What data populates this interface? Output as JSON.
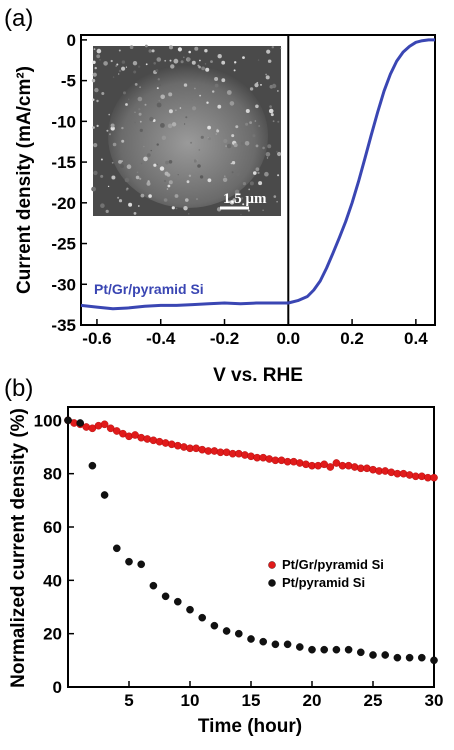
{
  "colors": {
    "blue_series": "#3a46b3",
    "red_series": "#e01b1b",
    "black_series": "#111111",
    "axis": "#000000"
  },
  "chart_data": [
    {
      "panel": "(a)",
      "type": "line",
      "xlabel": "V vs. RHE",
      "ylabel": "Current density (mA/cm²)",
      "xlim": [
        -0.65,
        0.46
      ],
      "ylim": [
        -35,
        0.6
      ],
      "xticks": [
        -0.6,
        -0.4,
        -0.2,
        0.0,
        0.2,
        0.4
      ],
      "xtick_labels": [
        "-0.6",
        "-0.4",
        "-0.2",
        "0.0",
        "0.2",
        "0.4"
      ],
      "yticks": [
        0,
        -5,
        -10,
        -15,
        -20,
        -25,
        -30,
        -35
      ],
      "ytick_labels": [
        "0",
        "-5",
        "-10",
        "-15",
        "-20",
        "-25",
        "-30",
        "-35"
      ],
      "vertical_line_at": 0.0,
      "series": [
        {
          "name": "Pt/Gr/pyramid Si",
          "color": "#3a46b3",
          "x": [
            -0.65,
            -0.6,
            -0.55,
            -0.5,
            -0.45,
            -0.4,
            -0.35,
            -0.3,
            -0.25,
            -0.2,
            -0.15,
            -0.1,
            -0.05,
            0.0,
            0.03,
            0.06,
            0.08,
            0.1,
            0.12,
            0.14,
            0.16,
            0.18,
            0.2,
            0.22,
            0.24,
            0.26,
            0.28,
            0.3,
            0.32,
            0.34,
            0.36,
            0.38,
            0.4,
            0.42,
            0.44,
            0.46
          ],
          "y": [
            -32.6,
            -32.8,
            -33.0,
            -32.9,
            -32.7,
            -32.6,
            -32.6,
            -32.5,
            -32.4,
            -32.3,
            -32.4,
            -32.3,
            -32.3,
            -32.3,
            -32.0,
            -31.5,
            -30.7,
            -29.6,
            -28.0,
            -26.2,
            -24.3,
            -22.3,
            -20.0,
            -17.4,
            -14.6,
            -11.7,
            -8.9,
            -6.3,
            -4.2,
            -2.6,
            -1.5,
            -0.8,
            -0.3,
            -0.1,
            0.0,
            0.0
          ]
        }
      ],
      "inset": {
        "description_label": "1.5 μm"
      }
    },
    {
      "panel": "(b)",
      "type": "scatter",
      "xlabel": "Time (hour)",
      "ylabel": "Normalized current density (%)",
      "xlim": [
        0,
        30
      ],
      "ylim": [
        0,
        105
      ],
      "xticks": [
        5,
        10,
        15,
        20,
        25,
        30
      ],
      "xtick_labels": [
        "5",
        "10",
        "15",
        "20",
        "25",
        "30"
      ],
      "yticks": [
        0,
        20,
        40,
        60,
        80,
        100
      ],
      "ytick_labels": [
        "0",
        "20",
        "40",
        "60",
        "80",
        "100"
      ],
      "legend_position": "center-right",
      "series": [
        {
          "name": "Pt/Gr/pyramid Si",
          "color": "#e01b1b",
          "x": [
            0,
            0.5,
            1,
            1.5,
            2,
            2.5,
            3,
            3.5,
            4,
            4.5,
            5,
            5.5,
            6,
            6.5,
            7,
            7.5,
            8,
            8.5,
            9,
            9.5,
            10,
            10.5,
            11,
            11.5,
            12,
            12.5,
            13,
            13.5,
            14,
            14.5,
            15,
            15.5,
            16,
            16.5,
            17,
            17.5,
            18,
            18.5,
            19,
            19.5,
            20,
            20.5,
            21,
            21.5,
            22,
            22.5,
            23,
            23.5,
            24,
            24.5,
            25,
            25.5,
            26,
            26.5,
            27,
            27.5,
            28,
            28.5,
            29,
            29.5,
            30
          ],
          "y": [
            100,
            99,
            98.5,
            97.5,
            97,
            98,
            98.5,
            97,
            96,
            95,
            94,
            94.5,
            93.5,
            93,
            92.5,
            92,
            91.5,
            91,
            90.5,
            90,
            89.5,
            89.5,
            89,
            88.5,
            88.5,
            88,
            88,
            87.5,
            87.5,
            87,
            86.5,
            86,
            86,
            85.5,
            85,
            85,
            84.5,
            84.5,
            84,
            83.5,
            83,
            83,
            83.5,
            82.5,
            84,
            83,
            83,
            82.5,
            82,
            82,
            81.5,
            81,
            81,
            80.5,
            80,
            80,
            79.5,
            79,
            79,
            78.5,
            78.5
          ]
        },
        {
          "name": "Pt/pyramid Si",
          "color": "#111111",
          "x": [
            0,
            1,
            2,
            3,
            4,
            5,
            6,
            7,
            8,
            9,
            10,
            11,
            12,
            13,
            14,
            15,
            16,
            17,
            18,
            19,
            20,
            21,
            22,
            23,
            24,
            25,
            26,
            27,
            28,
            29,
            30
          ],
          "y": [
            100,
            99,
            83,
            72,
            52,
            47,
            46,
            38,
            34,
            32,
            29,
            26,
            23,
            21,
            20,
            18,
            17,
            16,
            16,
            15,
            14,
            14,
            14,
            14,
            13,
            12,
            12,
            11,
            11,
            11,
            10
          ]
        }
      ]
    }
  ]
}
